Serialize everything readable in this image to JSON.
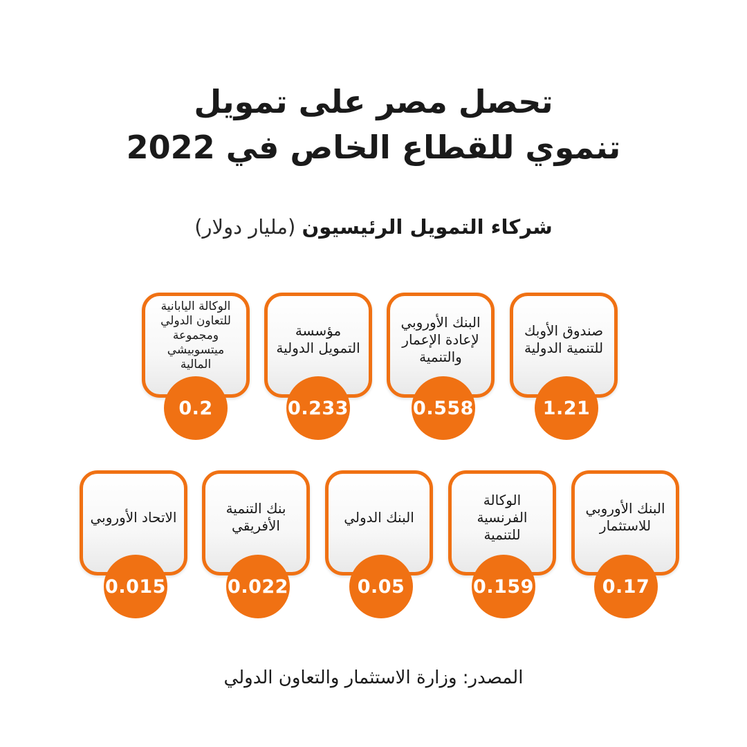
{
  "title": {
    "line1": "تحصل مصر على تمويل",
    "line2": "تنموي للقطاع الخاص في 2022"
  },
  "subtitle": {
    "main": "شركاء التمويل الرئيسيون",
    "unit": "(مليار دولار)"
  },
  "colors": {
    "accent": "#f07113",
    "text": "#1a1a1a",
    "background": "#ffffff"
  },
  "partners": [
    {
      "name": "صندوق الأوبك للتنمية الدولية",
      "value": "1.21"
    },
    {
      "name": "البنك الأوروبي لإعادة الإعمار والتنمية",
      "value": "0.558"
    },
    {
      "name": "مؤسسة التمويل الدولية",
      "value": "0.233"
    },
    {
      "name": "الوكالة اليابانية للتعاون الدولي ومجموعة ميتسوبيشي المالية",
      "value": "0.2"
    },
    {
      "name": "البنك الأوروبي للاستثمار",
      "value": "0.17"
    },
    {
      "name": "الوكالة الفرنسية للتنمية",
      "value": "0.159"
    },
    {
      "name": "البنك الدولي",
      "value": "0.05"
    },
    {
      "name": "بنك التنمية الأفريقي",
      "value": "0.022"
    },
    {
      "name": "الاتحاد الأوروبي",
      "value": "0.015"
    }
  ],
  "source": "المصدر: وزارة الاستثمار والتعاون الدولي"
}
